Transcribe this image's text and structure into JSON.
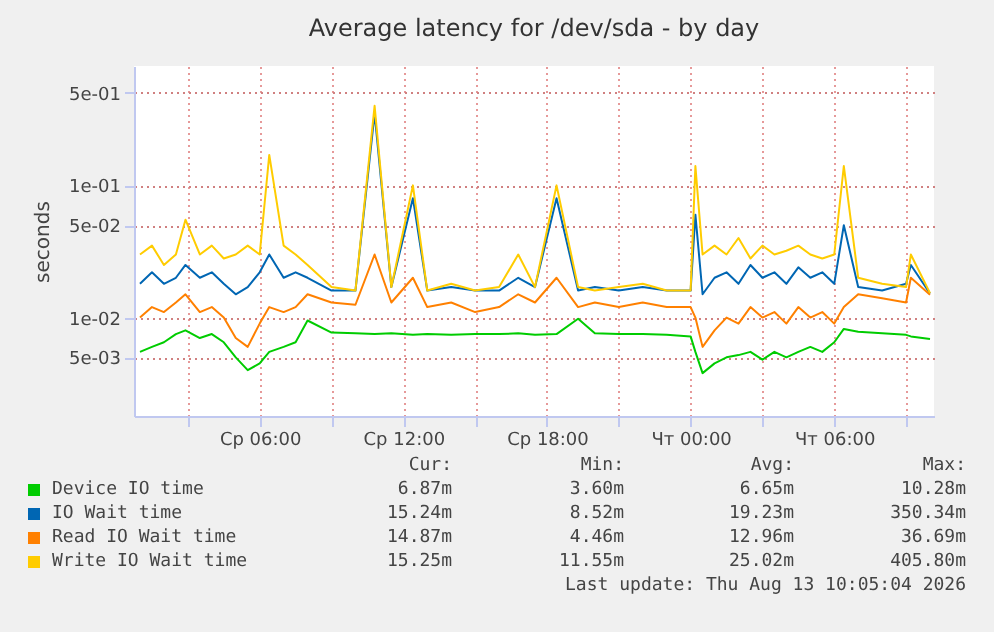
{
  "chart_data": {
    "type": "line",
    "title": "Average latency for /dev/sda - by day",
    "ylabel": "seconds",
    "x": [
      "2026-08-12T01:00",
      "2026-08-12T01:30",
      "2026-08-12T02:00",
      "2026-08-12T02:30",
      "2026-08-12T02:54",
      "2026-08-12T03:30",
      "2026-08-12T04:00",
      "2026-08-12T04:30",
      "2026-08-12T05:00",
      "2026-08-12T05:30",
      "2026-08-12T06:00",
      "2026-08-12T06:24",
      "2026-08-12T07:00",
      "2026-08-12T07:30",
      "2026-08-12T08:00",
      "2026-08-12T09:00",
      "2026-08-12T10:00",
      "2026-08-12T10:48",
      "2026-08-12T11:30",
      "2026-08-12T12:24",
      "2026-08-12T13:00",
      "2026-08-12T14:00",
      "2026-08-12T15:00",
      "2026-08-12T16:00",
      "2026-08-12T16:48",
      "2026-08-12T17:30",
      "2026-08-12T18:24",
      "2026-08-12T19:18",
      "2026-08-12T20:00",
      "2026-08-12T21:00",
      "2026-08-12T22:00",
      "2026-08-12T23:00",
      "2026-08-13T00:00",
      "2026-08-13T00:12",
      "2026-08-13T00:30",
      "2026-08-13T01:00",
      "2026-08-13T01:30",
      "2026-08-13T02:00",
      "2026-08-13T02:30",
      "2026-08-13T03:00",
      "2026-08-13T03:30",
      "2026-08-13T04:00",
      "2026-08-13T04:30",
      "2026-08-13T05:00",
      "2026-08-13T05:30",
      "2026-08-13T06:00",
      "2026-08-13T06:24",
      "2026-08-13T07:00",
      "2026-08-13T08:00",
      "2026-08-13T09:00",
      "2026-08-13T09:12",
      "2026-08-13T10:00"
    ],
    "series": [
      {
        "name": "Device IO time",
        "color": "#00cc00",
        "values": [
          0.0055,
          0.006,
          0.0065,
          0.0075,
          0.008,
          0.007,
          0.0075,
          0.0065,
          0.005,
          0.004,
          0.0045,
          0.0055,
          0.006,
          0.0065,
          0.0095,
          0.0077,
          0.0076,
          0.0075,
          0.0076,
          0.0074,
          0.0075,
          0.0074,
          0.0075,
          0.0075,
          0.0076,
          0.0074,
          0.0075,
          0.0098,
          0.0076,
          0.0075,
          0.0075,
          0.0074,
          0.0072,
          0.0055,
          0.0038,
          0.0045,
          0.005,
          0.0052,
          0.0055,
          0.0048,
          0.0055,
          0.005,
          0.0055,
          0.006,
          0.0055,
          0.0065,
          0.0082,
          0.0078,
          0.0076,
          0.0074,
          0.0072,
          0.00687
        ]
      },
      {
        "name": "IO Wait time",
        "color": "#0066b3",
        "values": [
          0.018,
          0.022,
          0.018,
          0.02,
          0.025,
          0.02,
          0.022,
          0.018,
          0.015,
          0.017,
          0.022,
          0.03,
          0.02,
          0.022,
          0.02,
          0.016,
          0.016,
          0.35,
          0.017,
          0.08,
          0.016,
          0.017,
          0.016,
          0.016,
          0.02,
          0.017,
          0.08,
          0.016,
          0.017,
          0.016,
          0.017,
          0.016,
          0.016,
          0.06,
          0.015,
          0.02,
          0.022,
          0.018,
          0.025,
          0.02,
          0.022,
          0.018,
          0.024,
          0.02,
          0.022,
          0.018,
          0.05,
          0.017,
          0.016,
          0.018,
          0.025,
          0.0152
        ]
      },
      {
        "name": "Read IO Wait time",
        "color": "#ff8000",
        "values": [
          0.01,
          0.012,
          0.011,
          0.013,
          0.015,
          0.011,
          0.012,
          0.01,
          0.007,
          0.006,
          0.009,
          0.012,
          0.011,
          0.012,
          0.015,
          0.013,
          0.0125,
          0.03,
          0.013,
          0.02,
          0.012,
          0.013,
          0.011,
          0.012,
          0.015,
          0.013,
          0.02,
          0.012,
          0.013,
          0.012,
          0.013,
          0.012,
          0.012,
          0.01,
          0.006,
          0.008,
          0.01,
          0.009,
          0.012,
          0.01,
          0.011,
          0.009,
          0.012,
          0.01,
          0.011,
          0.009,
          0.012,
          0.015,
          0.014,
          0.013,
          0.02,
          0.0149
        ]
      },
      {
        "name": "Write IO Wait time",
        "color": "#ffcc00",
        "values": [
          0.03,
          0.035,
          0.025,
          0.03,
          0.055,
          0.03,
          0.035,
          0.028,
          0.03,
          0.035,
          0.03,
          0.17,
          0.035,
          0.03,
          0.025,
          0.017,
          0.016,
          0.4,
          0.017,
          0.1,
          0.016,
          0.018,
          0.016,
          0.017,
          0.03,
          0.017,
          0.1,
          0.017,
          0.016,
          0.017,
          0.018,
          0.016,
          0.016,
          0.14,
          0.03,
          0.035,
          0.03,
          0.04,
          0.028,
          0.035,
          0.03,
          0.032,
          0.035,
          0.03,
          0.028,
          0.03,
          0.14,
          0.02,
          0.018,
          0.017,
          0.03,
          0.0153
        ]
      }
    ],
    "log": "y",
    "ylim": [
      0.0018,
      0.8
    ],
    "yticks": [
      {
        "value": 0.005,
        "label": "5e-03"
      },
      {
        "value": 0.01,
        "label": "1e-02"
      },
      {
        "value": 0.05,
        "label": "5e-02"
      },
      {
        "value": 0.1,
        "label": "1e-01"
      },
      {
        "value": 0.5,
        "label": "5e-01"
      }
    ],
    "xlim": [
      "2026-08-12T00:45",
      "2026-08-13T10:10"
    ],
    "xticks": [
      {
        "value": "2026-08-12T03:00",
        "label": null
      },
      {
        "value": "2026-08-12T06:00",
        "label": "Ср 06:00"
      },
      {
        "value": "2026-08-12T09:00",
        "label": null
      },
      {
        "value": "2026-08-12T12:00",
        "label": "Ср 12:00"
      },
      {
        "value": "2026-08-12T15:00",
        "label": null
      },
      {
        "value": "2026-08-12T18:00",
        "label": "Ср 18:00"
      },
      {
        "value": "2026-08-12T21:00",
        "label": null
      },
      {
        "value": "2026-08-13T00:00",
        "label": "Чт 00:00"
      },
      {
        "value": "2026-08-13T03:00",
        "label": null
      },
      {
        "value": "2026-08-13T06:00",
        "label": "Чт 06:00"
      },
      {
        "value": "2026-08-13T09:00",
        "label": null
      }
    ],
    "grid": true,
    "legend": "bottom",
    "marker": "none",
    "line_style": "solid",
    "annotations": [
      "Cur:",
      "Min:",
      "Avg:",
      "Max:",
      "6.87m",
      "3.60m",
      "6.65m",
      "10.28m",
      "15.24m",
      "8.52m",
      "19.23m",
      "350.34m",
      "14.87m",
      "4.46m",
      "12.96m",
      "36.69m",
      "15.25m",
      "11.55m",
      "25.02m",
      "405.80m",
      "Last update: Thu Aug 13 10:05:04 2026"
    ]
  }
}
